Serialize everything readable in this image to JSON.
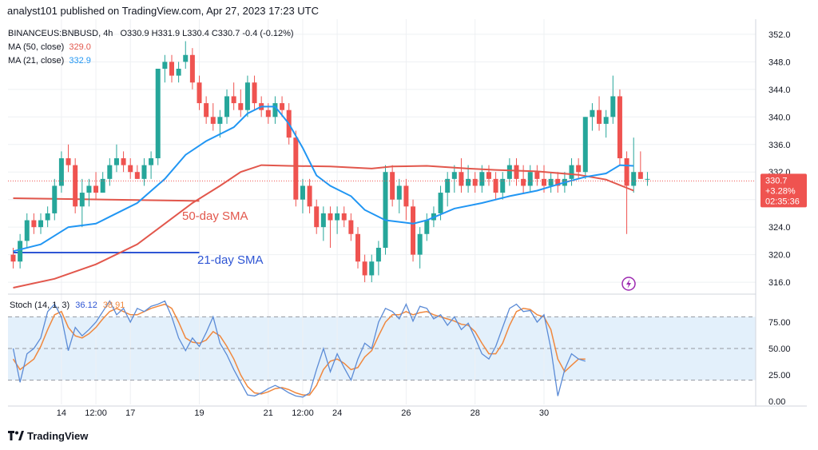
{
  "header": {
    "text": "analyst101 published on TradingView.com, Apr 27, 2023 17:23 UTC"
  },
  "legend": {
    "symbol": "BINANCEUS:BNBUSD, 4h",
    "ohlc": "O330.9 H331.9 L330.4 C330.7 -0.4 (-0.12%)",
    "ma50_label": "MA (50, close)",
    "ma50_value": "329.0",
    "ma21_label": "MA (21, close)",
    "ma21_value": "332.9"
  },
  "stoch_legend": {
    "label": "Stoch (14, 1, 3)",
    "k_value": "36.12",
    "d_value": "38.91"
  },
  "price_badge": {
    "price": "330.7",
    "change": "+3.28%",
    "countdown": "02:35:36"
  },
  "annotations": {
    "sma50": "50-day SMA",
    "sma21": "21-day SMA"
  },
  "footer": {
    "brand": "TradingView"
  },
  "colors": {
    "up": "#26a69a",
    "down": "#ef5350",
    "ma50": "#e2574c",
    "ma21": "#2196f3",
    "stoch_k": "#5b8bd6",
    "stoch_d": "#f0883e",
    "band": "#e3f0fb",
    "grid": "#eef0f3",
    "line_upper": "#e2574c",
    "line_lower": "#2e55d4",
    "annot50": "#e2574c",
    "annot21": "#2e55d4"
  },
  "chart_data": {
    "type": "candlestick",
    "price_axis": {
      "ticks": [
        "352.0",
        "348.0",
        "344.0",
        "340.0",
        "336.0",
        "332.0",
        "328.0",
        "324.0",
        "320.0",
        "316.0"
      ],
      "ylim": [
        314.5,
        353.5
      ]
    },
    "stoch_axis": {
      "ticks": [
        "75.00",
        "50.00",
        "25.00",
        "0.00"
      ],
      "band": [
        20,
        80
      ],
      "mid": 50,
      "ylim": [
        -3,
        100
      ]
    },
    "x_axis": {
      "ticks": [
        "14",
        "12:00",
        "17",
        "19",
        "21",
        "12:00",
        "24",
        "26",
        "28",
        "30"
      ],
      "tick_positions": [
        7,
        12,
        17,
        27,
        37,
        42,
        47,
        57,
        67,
        77
      ]
    },
    "candles": [
      [
        320,
        321,
        318,
        319
      ],
      [
        319,
        323,
        318,
        322
      ],
      [
        322,
        326,
        321,
        325
      ],
      [
        325,
        326,
        323,
        324
      ],
      [
        324,
        326,
        323,
        325
      ],
      [
        325,
        327,
        324,
        326
      ],
      [
        326,
        331,
        325,
        330
      ],
      [
        330,
        335,
        329,
        334
      ],
      [
        334,
        336,
        332,
        333
      ],
      [
        333,
        334,
        326,
        327
      ],
      [
        327,
        331,
        324,
        329
      ],
      [
        329,
        331,
        327,
        330
      ],
      [
        330,
        332,
        328,
        329
      ],
      [
        329,
        332,
        329,
        331
      ],
      [
        331,
        334,
        330,
        333
      ],
      [
        333,
        336,
        332,
        334
      ],
      [
        334,
        335,
        332,
        333
      ],
      [
        333,
        334,
        331,
        332
      ],
      [
        332,
        333,
        331,
        331
      ],
      [
        331,
        334,
        330,
        333
      ],
      [
        333,
        335,
        331,
        334
      ],
      [
        334,
        347,
        333,
        347
      ],
      [
        347,
        349,
        345,
        348
      ],
      [
        348,
        349,
        345,
        346
      ],
      [
        346,
        348,
        345,
        347
      ],
      [
        348,
        351,
        347,
        349
      ],
      [
        349,
        350,
        344,
        345
      ],
      [
        345,
        346,
        341,
        342
      ],
      [
        342,
        343,
        339,
        340
      ],
      [
        340,
        342,
        338,
        339
      ],
      [
        339,
        341,
        337,
        340
      ],
      [
        340,
        344,
        339,
        343
      ],
      [
        343,
        345,
        341,
        342
      ],
      [
        342,
        344,
        340,
        341
      ],
      [
        341,
        346,
        340,
        345
      ],
      [
        345,
        346,
        341,
        342
      ],
      [
        342,
        343,
        340,
        341
      ],
      [
        341,
        342,
        339,
        340
      ],
      [
        340,
        343,
        339,
        342
      ],
      [
        342,
        343,
        340,
        341
      ],
      [
        341,
        342,
        336,
        337
      ],
      [
        337,
        338,
        327,
        328
      ],
      [
        328,
        331,
        326,
        330
      ],
      [
        330,
        331,
        326,
        327
      ],
      [
        327,
        328,
        323,
        324
      ],
      [
        324,
        327,
        322,
        326
      ],
      [
        326,
        327,
        321,
        325
      ],
      [
        325,
        327,
        323,
        326
      ],
      [
        326,
        327,
        324,
        325
      ],
      [
        325,
        326,
        322,
        323
      ],
      [
        323,
        324,
        318,
        319
      ],
      [
        319,
        320,
        316,
        317
      ],
      [
        317,
        320,
        316,
        319
      ],
      [
        319,
        322,
        317,
        321
      ],
      [
        321,
        333,
        320,
        332
      ],
      [
        332,
        333,
        327,
        328
      ],
      [
        328,
        331,
        326,
        330
      ],
      [
        330,
        331,
        325,
        327
      ],
      [
        327,
        328,
        319,
        320
      ],
      [
        320,
        324,
        318,
        323
      ],
      [
        323,
        326,
        322,
        325
      ],
      [
        325,
        327,
        324,
        326
      ],
      [
        326,
        330,
        325,
        329
      ],
      [
        329,
        332,
        327,
        331
      ],
      [
        331,
        333,
        329,
        332
      ],
      [
        332,
        334,
        329,
        330
      ],
      [
        330,
        333,
        329,
        331
      ],
      [
        331,
        332,
        329,
        330
      ],
      [
        330,
        333,
        329,
        332
      ],
      [
        332,
        333,
        330,
        331
      ],
      [
        331,
        332,
        328,
        329
      ],
      [
        329,
        332,
        328,
        331
      ],
      [
        331,
        334,
        330,
        333
      ],
      [
        333,
        334,
        330,
        331
      ],
      [
        331,
        333,
        329,
        330
      ],
      [
        330,
        333,
        329,
        332
      ],
      [
        332,
        333,
        330,
        331
      ],
      [
        331,
        333,
        329,
        330
      ],
      [
        330,
        332,
        329,
        331
      ],
      [
        331,
        332,
        329,
        330
      ],
      [
        330,
        332,
        329,
        331
      ],
      [
        331,
        334,
        330,
        333
      ],
      [
        333,
        334,
        331,
        332
      ],
      [
        332,
        340,
        331,
        340
      ],
      [
        340,
        342,
        338,
        341
      ],
      [
        341,
        343,
        338,
        339
      ],
      [
        339,
        341,
        337,
        340
      ],
      [
        340,
        346,
        339,
        343
      ],
      [
        343,
        344,
        333,
        334
      ],
      [
        334,
        335,
        323,
        330
      ],
      [
        330,
        337,
        329,
        332
      ],
      [
        332,
        335,
        331,
        331
      ],
      [
        331,
        332,
        330,
        331
      ]
    ],
    "ma50": [
      [
        0,
        315.2
      ],
      [
        6,
        316.5
      ],
      [
        12,
        318.6
      ],
      [
        18,
        321.5
      ],
      [
        22,
        324.5
      ],
      [
        26,
        327.5
      ],
      [
        30,
        330
      ],
      [
        33,
        332
      ],
      [
        36,
        333
      ],
      [
        40,
        332.9
      ],
      [
        46,
        332.8
      ],
      [
        52,
        332.5
      ],
      [
        55,
        332.8
      ],
      [
        60,
        332.9
      ],
      [
        66,
        332.5
      ],
      [
        70,
        332.3
      ],
      [
        76,
        332.1
      ],
      [
        82,
        331.6
      ],
      [
        86,
        330.9
      ],
      [
        90,
        329.3
      ]
    ],
    "ma21": [
      [
        0,
        320.5
      ],
      [
        4,
        321.5
      ],
      [
        8,
        324
      ],
      [
        12,
        324.5
      ],
      [
        14,
        325.5
      ],
      [
        18,
        327.5
      ],
      [
        22,
        331
      ],
      [
        25,
        334.5
      ],
      [
        28,
        336.5
      ],
      [
        32,
        338.5
      ],
      [
        34,
        340.5
      ],
      [
        36,
        341.5
      ],
      [
        38,
        341.5
      ],
      [
        40,
        339
      ],
      [
        42,
        335.5
      ],
      [
        44,
        331.5
      ],
      [
        46,
        330
      ],
      [
        49,
        328.5
      ],
      [
        51,
        326.5
      ],
      [
        54,
        325
      ],
      [
        58,
        324.5
      ],
      [
        60,
        325
      ],
      [
        64,
        326.7
      ],
      [
        68,
        327.5
      ],
      [
        72,
        328.5
      ],
      [
        76,
        329.3
      ],
      [
        80,
        330.5
      ],
      [
        83,
        331.3
      ],
      [
        86,
        331.8
      ],
      [
        88,
        333
      ],
      [
        90,
        332.9
      ]
    ],
    "lines": [
      {
        "name": "",
        "color_key": "line_upper",
        "x": [
          0,
          27
        ],
        "y": [
          328.2,
          327.8
        ]
      },
      {
        "name": "",
        "color_key": "line_lower",
        "x": [
          0,
          27
        ],
        "y": [
          320.3,
          320.3
        ]
      }
    ],
    "stoch_k": [
      [
        0,
        50
      ],
      [
        1,
        18
      ],
      [
        2,
        45
      ],
      [
        3,
        50
      ],
      [
        4,
        60
      ],
      [
        5,
        85
      ],
      [
        6,
        92
      ],
      [
        7,
        80
      ],
      [
        8,
        48
      ],
      [
        9,
        70
      ],
      [
        10,
        62
      ],
      [
        11,
        68
      ],
      [
        12,
        75
      ],
      [
        13,
        85
      ],
      [
        14,
        95
      ],
      [
        15,
        82
      ],
      [
        16,
        88
      ],
      [
        17,
        75
      ],
      [
        18,
        88
      ],
      [
        19,
        85
      ],
      [
        20,
        90
      ],
      [
        21,
        92
      ],
      [
        22,
        95
      ],
      [
        23,
        80
      ],
      [
        24,
        60
      ],
      [
        25,
        48
      ],
      [
        26,
        60
      ],
      [
        27,
        52
      ],
      [
        28,
        65
      ],
      [
        29,
        80
      ],
      [
        30,
        55
      ],
      [
        31,
        44
      ],
      [
        32,
        30
      ],
      [
        33,
        18
      ],
      [
        34,
        6
      ],
      [
        35,
        5
      ],
      [
        36,
        8
      ],
      [
        37,
        12
      ],
      [
        38,
        15
      ],
      [
        39,
        12
      ],
      [
        40,
        8
      ],
      [
        41,
        5
      ],
      [
        42,
        4
      ],
      [
        43,
        8
      ],
      [
        44,
        30
      ],
      [
        45,
        50
      ],
      [
        46,
        28
      ],
      [
        47,
        45
      ],
      [
        48,
        32
      ],
      [
        49,
        20
      ],
      [
        50,
        40
      ],
      [
        51,
        55
      ],
      [
        52,
        50
      ],
      [
        53,
        75
      ],
      [
        54,
        88
      ],
      [
        55,
        85
      ],
      [
        56,
        78
      ],
      [
        57,
        92
      ],
      [
        58,
        76
      ],
      [
        59,
        90
      ],
      [
        60,
        88
      ],
      [
        61,
        78
      ],
      [
        62,
        82
      ],
      [
        63,
        72
      ],
      [
        64,
        80
      ],
      [
        65,
        68
      ],
      [
        66,
        74
      ],
      [
        67,
        60
      ],
      [
        68,
        45
      ],
      [
        69,
        40
      ],
      [
        70,
        52
      ],
      [
        71,
        70
      ],
      [
        72,
        88
      ],
      [
        73,
        92
      ],
      [
        74,
        85
      ],
      [
        75,
        86
      ],
      [
        76,
        75
      ],
      [
        77,
        82
      ],
      [
        78,
        50
      ],
      [
        79,
        5
      ],
      [
        80,
        30
      ],
      [
        81,
        45
      ],
      [
        82,
        40
      ],
      [
        83,
        38
      ]
    ],
    "stoch_d": [
      [
        0,
        40
      ],
      [
        1,
        30
      ],
      [
        2,
        35
      ],
      [
        3,
        40
      ],
      [
        4,
        52
      ],
      [
        5,
        68
      ],
      [
        6,
        82
      ],
      [
        7,
        85
      ],
      [
        8,
        70
      ],
      [
        9,
        62
      ],
      [
        10,
        60
      ],
      [
        11,
        64
      ],
      [
        12,
        70
      ],
      [
        13,
        78
      ],
      [
        14,
        85
      ],
      [
        15,
        88
      ],
      [
        16,
        85
      ],
      [
        17,
        82
      ],
      [
        18,
        82
      ],
      [
        19,
        85
      ],
      [
        20,
        88
      ],
      [
        21,
        90
      ],
      [
        22,
        92
      ],
      [
        23,
        88
      ],
      [
        24,
        75
      ],
      [
        25,
        60
      ],
      [
        26,
        56
      ],
      [
        27,
        55
      ],
      [
        28,
        58
      ],
      [
        29,
        66
      ],
      [
        30,
        62
      ],
      [
        31,
        52
      ],
      [
        32,
        40
      ],
      [
        33,
        25
      ],
      [
        34,
        14
      ],
      [
        35,
        8
      ],
      [
        36,
        7
      ],
      [
        37,
        9
      ],
      [
        38,
        12
      ],
      [
        39,
        13
      ],
      [
        40,
        11
      ],
      [
        41,
        8
      ],
      [
        42,
        6
      ],
      [
        43,
        6
      ],
      [
        44,
        15
      ],
      [
        45,
        30
      ],
      [
        46,
        38
      ],
      [
        47,
        40
      ],
      [
        48,
        36
      ],
      [
        49,
        30
      ],
      [
        50,
        32
      ],
      [
        51,
        42
      ],
      [
        52,
        48
      ],
      [
        53,
        62
      ],
      [
        54,
        75
      ],
      [
        55,
        82
      ],
      [
        56,
        82
      ],
      [
        57,
        85
      ],
      [
        58,
        82
      ],
      [
        59,
        84
      ],
      [
        60,
        85
      ],
      [
        61,
        82
      ],
      [
        62,
        80
      ],
      [
        63,
        78
      ],
      [
        64,
        76
      ],
      [
        65,
        73
      ],
      [
        66,
        72
      ],
      [
        67,
        66
      ],
      [
        68,
        55
      ],
      [
        69,
        45
      ],
      [
        70,
        45
      ],
      [
        71,
        55
      ],
      [
        72,
        72
      ],
      [
        73,
        85
      ],
      [
        74,
        88
      ],
      [
        75,
        87
      ],
      [
        76,
        82
      ],
      [
        77,
        80
      ],
      [
        78,
        68
      ],
      [
        79,
        40
      ],
      [
        80,
        28
      ],
      [
        81,
        34
      ],
      [
        82,
        40
      ],
      [
        83,
        40
      ]
    ]
  }
}
